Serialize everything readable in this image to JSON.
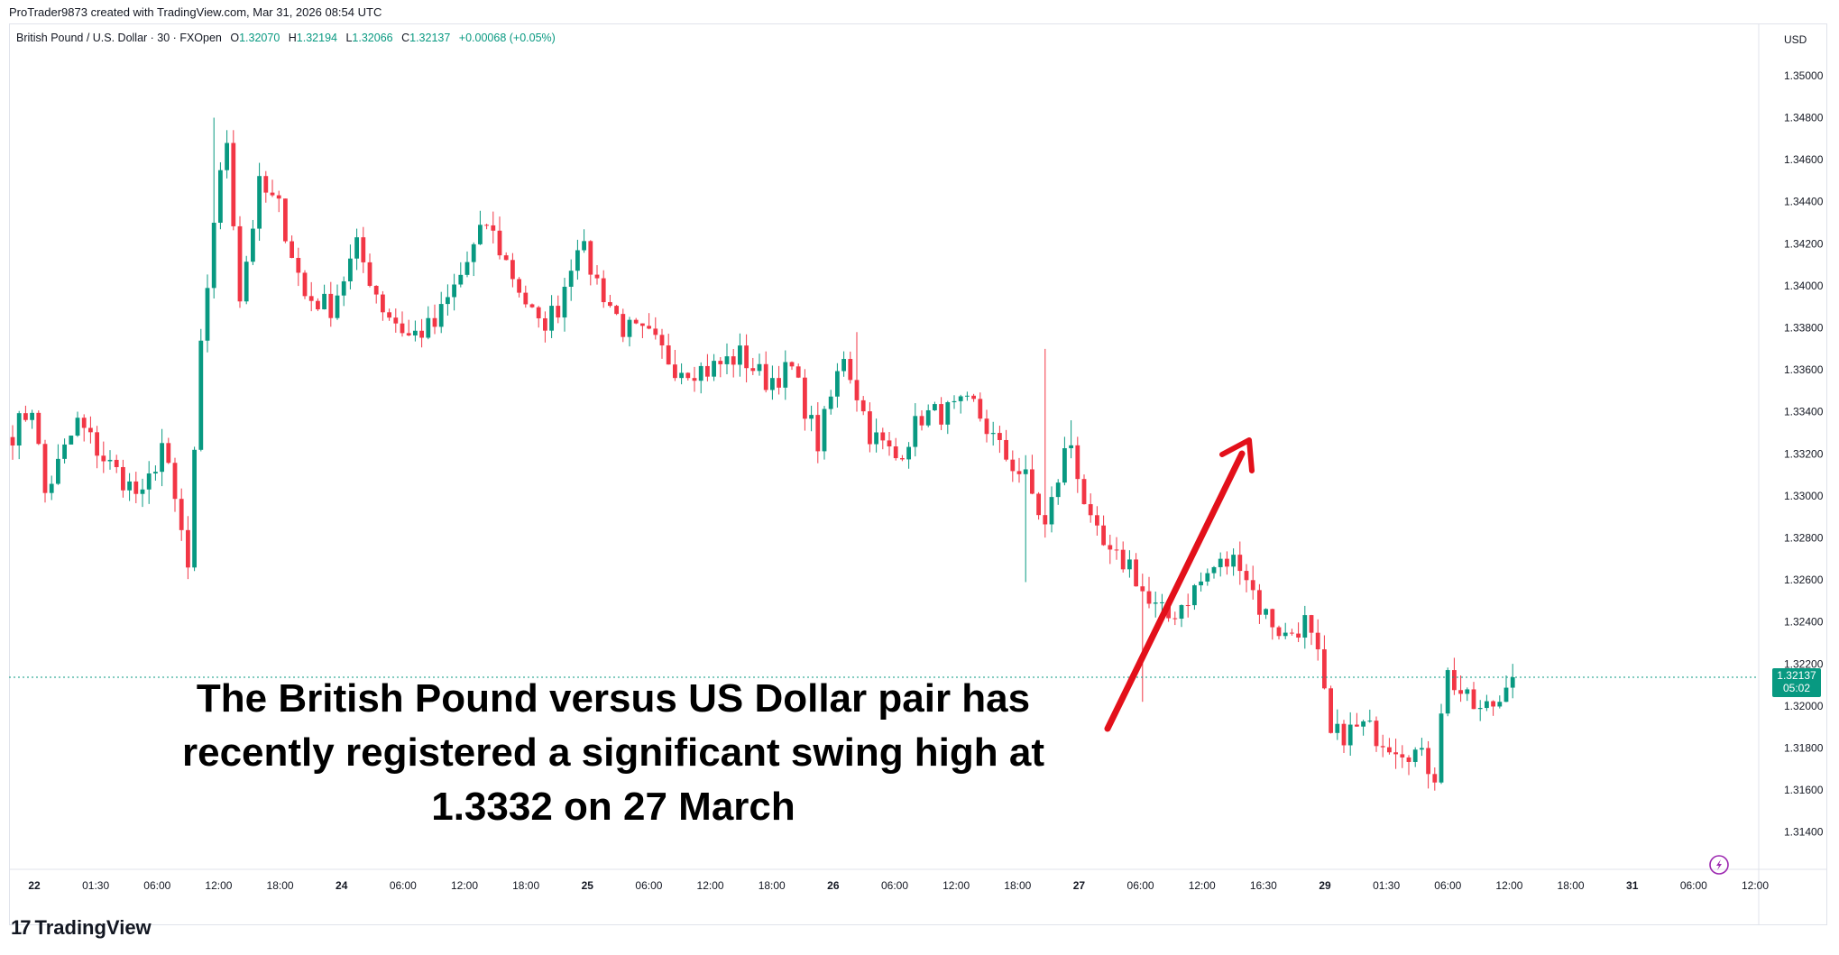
{
  "attribution": "ProTrader9873 created with TradingView.com, Mar 31, 2026 08:54 UTC",
  "legend": {
    "symbol": "British Pound / U.S. Dollar · 30 · FXOpen",
    "open_label": "O",
    "open": "1.32070",
    "high_label": "H",
    "high": "1.32194",
    "low_label": "L",
    "low": "1.32066",
    "close_label": "C",
    "close": "1.32137",
    "change": "+0.00068 (+0.05%)"
  },
  "annotation_text": "The British Pound versus US Dollar pair has recently registered a significant swing high at 1.3332 on 27 March",
  "footer_logo": "TradingView",
  "colors": {
    "up": "#089981",
    "down": "#f23645",
    "arrow": "#e3101a",
    "price_line": "#089981"
  },
  "chart_data": {
    "type": "candlestick",
    "timeframe": "30",
    "currency_label": "USD",
    "ylim": [
      1.313,
      1.3512
    ],
    "y_ticks": [
      "1.35000",
      "1.34800",
      "1.34600",
      "1.34400",
      "1.34200",
      "1.34000",
      "1.33800",
      "1.33600",
      "1.33400",
      "1.33200",
      "1.33000",
      "1.32800",
      "1.32600",
      "1.32400",
      "1.32200",
      "1.32000",
      "1.31800",
      "1.31600",
      "1.31400"
    ],
    "x_ticks": [
      {
        "label": "22",
        "bold": true
      },
      {
        "label": "01:30"
      },
      {
        "label": "06:00"
      },
      {
        "label": "12:00"
      },
      {
        "label": "18:00"
      },
      {
        "label": "24",
        "bold": true
      },
      {
        "label": "06:00"
      },
      {
        "label": "12:00"
      },
      {
        "label": "18:00"
      },
      {
        "label": "25",
        "bold": true
      },
      {
        "label": "06:00"
      },
      {
        "label": "12:00"
      },
      {
        "label": "18:00"
      },
      {
        "label": "26",
        "bold": true
      },
      {
        "label": "06:00"
      },
      {
        "label": "12:00"
      },
      {
        "label": "18:00"
      },
      {
        "label": "27",
        "bold": true
      },
      {
        "label": "06:00"
      },
      {
        "label": "12:00"
      },
      {
        "label": "16:30"
      },
      {
        "label": "29",
        "bold": true
      },
      {
        "label": "01:30"
      },
      {
        "label": "06:00"
      },
      {
        "label": "12:00"
      },
      {
        "label": "18:00"
      },
      {
        "label": "31",
        "bold": true
      },
      {
        "label": "06:00"
      },
      {
        "label": "12:00"
      }
    ],
    "current_price": "1.32137",
    "countdown": "05:02",
    "swing_high": 1.3332,
    "anchors": [
      {
        "i": 0,
        "p": 1.333
      },
      {
        "i": 3,
        "p": 1.3343
      },
      {
        "i": 5,
        "p": 1.3301
      },
      {
        "i": 10,
        "p": 1.3335
      },
      {
        "i": 14,
        "p": 1.3318
      },
      {
        "i": 20,
        "p": 1.3298
      },
      {
        "i": 23,
        "p": 1.3325
      },
      {
        "i": 26,
        "p": 1.3282
      },
      {
        "i": 27,
        "p": 1.3265
      },
      {
        "i": 29,
        "p": 1.3369
      },
      {
        "i": 31,
        "p": 1.3432
      },
      {
        "i": 33,
        "p": 1.347
      },
      {
        "i": 35,
        "p": 1.3395
      },
      {
        "i": 38,
        "p": 1.3447
      },
      {
        "i": 41,
        "p": 1.3437
      },
      {
        "i": 45,
        "p": 1.3395
      },
      {
        "i": 49,
        "p": 1.339
      },
      {
        "i": 53,
        "p": 1.3418
      },
      {
        "i": 57,
        "p": 1.339
      },
      {
        "i": 61,
        "p": 1.3376
      },
      {
        "i": 65,
        "p": 1.3381
      },
      {
        "i": 69,
        "p": 1.3405
      },
      {
        "i": 73,
        "p": 1.343
      },
      {
        "i": 77,
        "p": 1.3405
      },
      {
        "i": 81,
        "p": 1.338
      },
      {
        "i": 84,
        "p": 1.339
      },
      {
        "i": 87,
        "p": 1.3422
      },
      {
        "i": 90,
        "p": 1.3402
      },
      {
        "i": 94,
        "p": 1.338
      },
      {
        "i": 98,
        "p": 1.3375
      },
      {
        "i": 102,
        "p": 1.3362
      },
      {
        "i": 107,
        "p": 1.336
      },
      {
        "i": 112,
        "p": 1.3367
      },
      {
        "i": 116,
        "p": 1.3355
      },
      {
        "i": 120,
        "p": 1.336
      },
      {
        "i": 124,
        "p": 1.3325
      },
      {
        "i": 128,
        "p": 1.3368
      },
      {
        "i": 132,
        "p": 1.333
      },
      {
        "i": 136,
        "p": 1.3318
      },
      {
        "i": 140,
        "p": 1.3338
      },
      {
        "i": 144,
        "p": 1.334
      },
      {
        "i": 148,
        "p": 1.3343
      },
      {
        "i": 152,
        "p": 1.3322
      },
      {
        "i": 156,
        "p": 1.3308
      },
      {
        "i": 159,
        "p": 1.3285
      },
      {
        "i": 162,
        "p": 1.332
      },
      {
        "i": 163,
        "p": 1.3325
      },
      {
        "i": 166,
        "p": 1.3285
      },
      {
        "i": 169,
        "p": 1.327
      },
      {
        "i": 172,
        "p": 1.3268
      },
      {
        "i": 175,
        "p": 1.3248
      },
      {
        "i": 178,
        "p": 1.3242
      },
      {
        "i": 181,
        "p": 1.3252
      },
      {
        "i": 185,
        "p": 1.3266
      },
      {
        "i": 189,
        "p": 1.327
      },
      {
        "i": 192,
        "p": 1.3247
      },
      {
        "i": 196,
        "p": 1.3233
      },
      {
        "i": 199,
        "p": 1.324
      },
      {
        "i": 201,
        "p": 1.3222
      },
      {
        "i": 203,
        "p": 1.3185
      },
      {
        "i": 208,
        "p": 1.319
      },
      {
        "i": 212,
        "p": 1.3183
      },
      {
        "i": 216,
        "p": 1.3178
      },
      {
        "i": 219,
        "p": 1.3168
      },
      {
        "i": 220,
        "p": 1.32
      },
      {
        "i": 221,
        "p": 1.3215
      },
      {
        "i": 224,
        "p": 1.3202
      },
      {
        "i": 226,
        "p": 1.3197
      },
      {
        "i": 229,
        "p": 1.3203
      },
      {
        "i": 230,
        "p": 1.3214
      }
    ]
  }
}
